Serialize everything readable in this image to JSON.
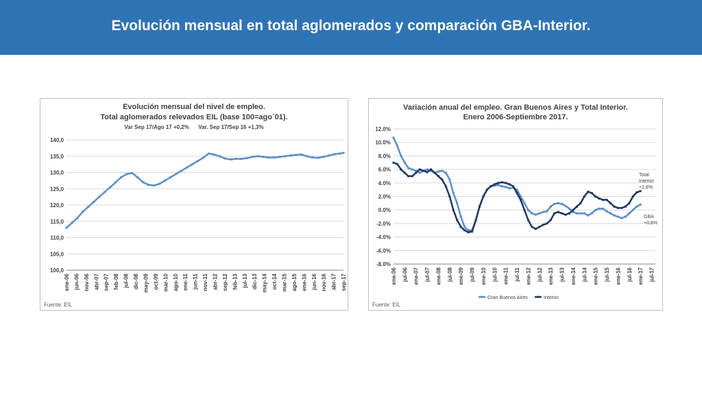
{
  "header": {
    "title": "Evolución mensual en total aglomerados y comparación GBA-Interior."
  },
  "colors": {
    "banner": "#2e74b5",
    "series_primary": "#5b8fc9",
    "series_dark": "#1f3864",
    "grid": "#d9d9d9"
  },
  "chart_data": [
    {
      "type": "line",
      "title": "Evolución mensual del nivel de empleo.",
      "subtitle": "Total aglomerados relevados EIL (base 100=ago´01).",
      "note": "Var Sep 17/Ago 17 +0,2%      Var. Sep 17/Sep 16 +1,3%",
      "source": "Fuente: EIL",
      "ylim": [
        100,
        140
      ],
      "yticks": [
        "100,0",
        "105,0",
        "110,0",
        "115,0",
        "120,0",
        "125,0",
        "130,0",
        "135,0",
        "140,0"
      ],
      "ytick_values": [
        100,
        105,
        110,
        115,
        120,
        125,
        130,
        135,
        140
      ],
      "xtick_labels": [
        "ene-06",
        "jun-06",
        "nov-06",
        "abr-07",
        "sep-07",
        "feb-08",
        "jul-08",
        "dic-08",
        "may-09",
        "oct-09",
        "mar-10",
        "ago-10",
        "ene-11",
        "jun-11",
        "nov-11",
        "abr-12",
        "sep-12",
        "feb-13",
        "jul-13",
        "dic-13",
        "may-14",
        "oct-14",
        "mar-15",
        "ago-15",
        "ene-16",
        "jun-16",
        "nov-16",
        "abr-17",
        "sep-17"
      ],
      "grid": true,
      "series": [
        {
          "color": "#5b8fc9",
          "points": [
            [
              0,
              113.0
            ],
            [
              3,
              114.5
            ],
            [
              6,
              116.0
            ],
            [
              9,
              118.0
            ],
            [
              12,
              119.5
            ],
            [
              15,
              121.0
            ],
            [
              18,
              122.5
            ],
            [
              21,
              124.0
            ],
            [
              24,
              125.5
            ],
            [
              27,
              127.0
            ],
            [
              30,
              128.5
            ],
            [
              33,
              129.5
            ],
            [
              36,
              129.8
            ],
            [
              39,
              128.5
            ],
            [
              42,
              127.0
            ],
            [
              45,
              126.2
            ],
            [
              48,
              126.0
            ],
            [
              51,
              126.5
            ],
            [
              54,
              127.5
            ],
            [
              57,
              128.5
            ],
            [
              60,
              129.5
            ],
            [
              63,
              130.5
            ],
            [
              66,
              131.5
            ],
            [
              69,
              132.5
            ],
            [
              72,
              133.5
            ],
            [
              75,
              134.5
            ],
            [
              78,
              135.8
            ],
            [
              81,
              135.5
            ],
            [
              84,
              135.0
            ],
            [
              87,
              134.3
            ],
            [
              90,
              134.0
            ],
            [
              93,
              134.2
            ],
            [
              96,
              134.2
            ],
            [
              99,
              134.4
            ],
            [
              102,
              134.8
            ],
            [
              105,
              135.0
            ],
            [
              108,
              134.8
            ],
            [
              111,
              134.6
            ],
            [
              114,
              134.6
            ],
            [
              117,
              134.8
            ],
            [
              120,
              135.0
            ],
            [
              123,
              135.2
            ],
            [
              126,
              135.4
            ],
            [
              129,
              135.5
            ],
            [
              132,
              135.0
            ],
            [
              135,
              134.6
            ],
            [
              138,
              134.5
            ],
            [
              141,
              134.8
            ],
            [
              144,
              135.2
            ],
            [
              147,
              135.6
            ],
            [
              150,
              135.8
            ],
            [
              152,
              136.0
            ]
          ]
        }
      ]
    },
    {
      "type": "line",
      "title": "Variación anual del empleo. Gran Buenos Aires y Total Interior.",
      "subtitle": "Enero 2006-Septiembre 2017.",
      "source": "Fuente: EIL",
      "ylim": [
        -8,
        12
      ],
      "yticks": [
        "-8.0%",
        "-6.0%",
        "-4.0%",
        "-2.0%",
        "0.0%",
        "2.0%",
        "4.0%",
        "6.0%",
        "8.0%",
        "10.0%",
        "12.0%"
      ],
      "ytick_values": [
        -8,
        -6,
        -4,
        -2,
        0,
        2,
        4,
        6,
        8,
        10,
        12
      ],
      "xtick_labels": [
        "ene-06",
        "jul-06",
        "ene-07",
        "jul-07",
        "ene-08",
        "jul-08",
        "ene-09",
        "jul-09",
        "ene-10",
        "jul-10",
        "ene-11",
        "jul-11",
        "ene-12",
        "jul-12",
        "ene-13",
        "jul-13",
        "ene-14",
        "jul-14",
        "ene-15",
        "jul-15",
        "ene-16",
        "jul-16",
        "ene-17",
        "jul-17"
      ],
      "grid": true,
      "legend": {
        "position": "bottom",
        "entries": [
          "Gran Buenos Aires",
          "Interior"
        ]
      },
      "annotations": [
        {
          "lines": [
            "Total",
            "Interior",
            "+2,8%"
          ],
          "series": "Interior"
        },
        {
          "lines": [
            "GBA",
            "+0,8%"
          ],
          "series": "Gran Buenos Aires"
        }
      ],
      "series": [
        {
          "name": "Gran Buenos Aires",
          "color": "#5b8fc9",
          "points": [
            [
              0,
              10.7
            ],
            [
              2,
              9.5
            ],
            [
              4,
              8.0
            ],
            [
              6,
              7.0
            ],
            [
              8,
              6.2
            ],
            [
              10,
              6.0
            ],
            [
              12,
              5.8
            ],
            [
              14,
              5.5
            ],
            [
              16,
              5.8
            ],
            [
              18,
              6.0
            ],
            [
              20,
              5.8
            ],
            [
              22,
              5.5
            ],
            [
              24,
              5.7
            ],
            [
              26,
              5.8
            ],
            [
              28,
              5.5
            ],
            [
              30,
              4.5
            ],
            [
              32,
              2.5
            ],
            [
              34,
              1.0
            ],
            [
              36,
              -1.0
            ],
            [
              38,
              -2.5
            ],
            [
              40,
              -3.0
            ],
            [
              42,
              -3.0
            ],
            [
              44,
              -1.5
            ],
            [
              46,
              0.5
            ],
            [
              48,
              2.0
            ],
            [
              50,
              3.0
            ],
            [
              52,
              3.5
            ],
            [
              54,
              3.6
            ],
            [
              56,
              3.7
            ],
            [
              58,
              3.5
            ],
            [
              60,
              3.4
            ],
            [
              62,
              3.2
            ],
            [
              64,
              3.3
            ],
            [
              66,
              3.0
            ],
            [
              68,
              2.0
            ],
            [
              70,
              1.0
            ],
            [
              72,
              0.0
            ],
            [
              74,
              -0.5
            ],
            [
              76,
              -0.7
            ],
            [
              78,
              -0.5
            ],
            [
              80,
              -0.3
            ],
            [
              82,
              -0.2
            ],
            [
              84,
              0.5
            ],
            [
              86,
              0.9
            ],
            [
              88,
              1.0
            ],
            [
              90,
              0.9
            ],
            [
              92,
              0.6
            ],
            [
              94,
              0.2
            ],
            [
              96,
              -0.3
            ],
            [
              98,
              -0.5
            ],
            [
              100,
              -0.5
            ],
            [
              102,
              -0.5
            ],
            [
              104,
              -0.8
            ],
            [
              106,
              -0.5
            ],
            [
              108,
              0.0
            ],
            [
              110,
              0.2
            ],
            [
              112,
              0.2
            ],
            [
              114,
              -0.2
            ],
            [
              116,
              -0.5
            ],
            [
              118,
              -0.8
            ],
            [
              120,
              -1.0
            ],
            [
              122,
              -1.2
            ],
            [
              124,
              -1.0
            ],
            [
              126,
              -0.5
            ],
            [
              128,
              0.0
            ],
            [
              130,
              0.5
            ],
            [
              132,
              0.8
            ]
          ]
        },
        {
          "name": "Interior",
          "color": "#1f3864",
          "points": [
            [
              0,
              7.0
            ],
            [
              2,
              6.8
            ],
            [
              4,
              6.0
            ],
            [
              6,
              5.5
            ],
            [
              8,
              5.0
            ],
            [
              10,
              5.0
            ],
            [
              12,
              5.5
            ],
            [
              14,
              6.0
            ],
            [
              16,
              5.8
            ],
            [
              18,
              5.6
            ],
            [
              20,
              6.0
            ],
            [
              22,
              5.5
            ],
            [
              24,
              5.0
            ],
            [
              26,
              4.5
            ],
            [
              28,
              3.5
            ],
            [
              30,
              2.0
            ],
            [
              32,
              0.0
            ],
            [
              34,
              -1.5
            ],
            [
              36,
              -2.5
            ],
            [
              38,
              -3.0
            ],
            [
              40,
              -3.3
            ],
            [
              42,
              -3.2
            ],
            [
              44,
              -1.5
            ],
            [
              46,
              0.5
            ],
            [
              48,
              2.0
            ],
            [
              50,
              3.0
            ],
            [
              52,
              3.5
            ],
            [
              54,
              3.8
            ],
            [
              56,
              4.0
            ],
            [
              58,
              4.1
            ],
            [
              60,
              4.0
            ],
            [
              62,
              3.8
            ],
            [
              64,
              3.5
            ],
            [
              66,
              2.5
            ],
            [
              68,
              1.5
            ],
            [
              70,
              0.0
            ],
            [
              72,
              -1.5
            ],
            [
              74,
              -2.5
            ],
            [
              76,
              -2.8
            ],
            [
              78,
              -2.5
            ],
            [
              80,
              -2.2
            ],
            [
              82,
              -2.0
            ],
            [
              84,
              -1.5
            ],
            [
              86,
              -0.5
            ],
            [
              88,
              -0.3
            ],
            [
              90,
              -0.5
            ],
            [
              92,
              -0.7
            ],
            [
              94,
              -0.5
            ],
            [
              96,
              0.0
            ],
            [
              98,
              0.5
            ],
            [
              100,
              1.0
            ],
            [
              102,
              2.0
            ],
            [
              104,
              2.7
            ],
            [
              106,
              2.5
            ],
            [
              108,
              2.0
            ],
            [
              110,
              1.7
            ],
            [
              112,
              1.5
            ],
            [
              114,
              1.5
            ],
            [
              116,
              1.0
            ],
            [
              118,
              0.5
            ],
            [
              120,
              0.3
            ],
            [
              122,
              0.3
            ],
            [
              124,
              0.5
            ],
            [
              126,
              1.0
            ],
            [
              128,
              2.0
            ],
            [
              130,
              2.6
            ],
            [
              132,
              2.8
            ]
          ]
        }
      ]
    }
  ]
}
